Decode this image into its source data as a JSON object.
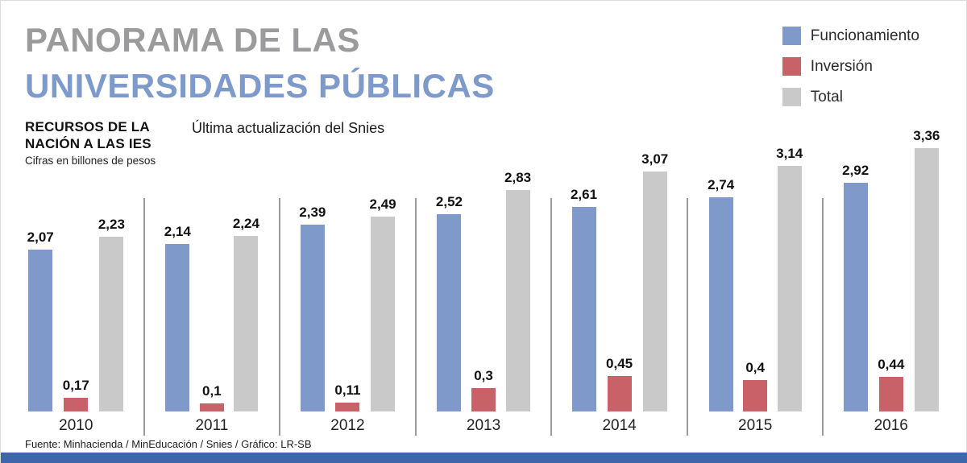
{
  "header": {
    "title_line1": "PANORAMA DE LAS",
    "title_line2": "UNIVERSIDADES PÚBLICAS",
    "subtitle_line1": "RECURSOS DE LA",
    "subtitle_line2": "NACIÓN A LAS IES",
    "subtitle_note": "Cifras en billones de pesos",
    "update_note": "Última actualización del Snies"
  },
  "chart_data": {
    "type": "bar",
    "title": "Recursos de la Nación a las IES (billones de pesos)",
    "categories": [
      "2010",
      "2011",
      "2012",
      "2013",
      "2014",
      "2015",
      "2016"
    ],
    "series": [
      {
        "name": "Funcionamiento",
        "color": "#7f9aca",
        "values": [
          2.07,
          2.14,
          2.39,
          2.52,
          2.61,
          2.74,
          2.92
        ],
        "labels": [
          "2,07",
          "2,14",
          "2,39",
          "2,52",
          "2,61",
          "2,74",
          "2,92"
        ]
      },
      {
        "name": "Inversión",
        "color": "#c96169",
        "values": [
          0.17,
          0.1,
          0.11,
          0.3,
          0.45,
          0.4,
          0.44
        ],
        "labels": [
          "0,17",
          "0,1",
          "0,11",
          "0,3",
          "0,45",
          "0,4",
          "0,44"
        ]
      },
      {
        "name": "Total",
        "color": "#c9c9c9",
        "values": [
          2.23,
          2.24,
          2.49,
          2.83,
          3.07,
          3.14,
          3.36
        ],
        "labels": [
          "2,23",
          "2,24",
          "2,49",
          "2,83",
          "3,07",
          "3,14",
          "3,36"
        ]
      }
    ],
    "ylim": [
      0,
      3.6
    ],
    "grid": false,
    "legend_position": "top-right",
    "accent_color": "#3e67ab"
  },
  "footer": {
    "source": "Fuente: Minhacienda / MinEducación / Snies / Gráfico: LR-SB"
  }
}
